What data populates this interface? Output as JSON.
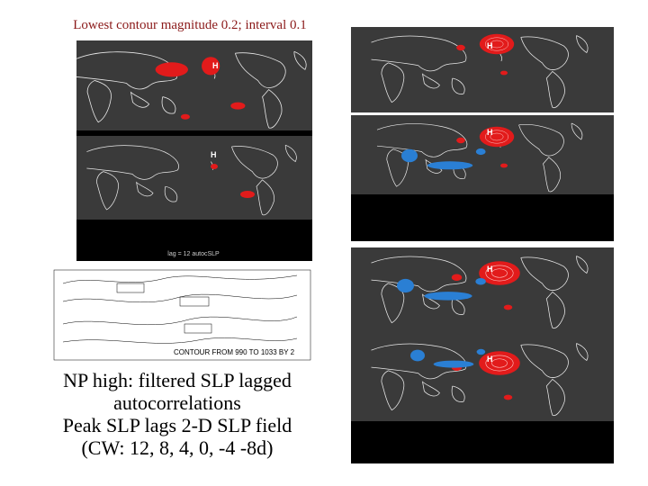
{
  "header": {
    "title": "Lowest contour magnitude 0.2; interval 0.1"
  },
  "caption": {
    "lines": [
      "NP high: filtered SLP lagged",
      "autocorrelations",
      "Peak SLP lags 2-D SLP field",
      "(CW: 12, 8, 4, 0, -4 -8d)"
    ]
  },
  "panels": {
    "marker_label": "H",
    "lag_label": "lag = 12 autocSLP",
    "contour_label": "CONTOUR FROM 990 TO 1033 BY 2"
  }
}
